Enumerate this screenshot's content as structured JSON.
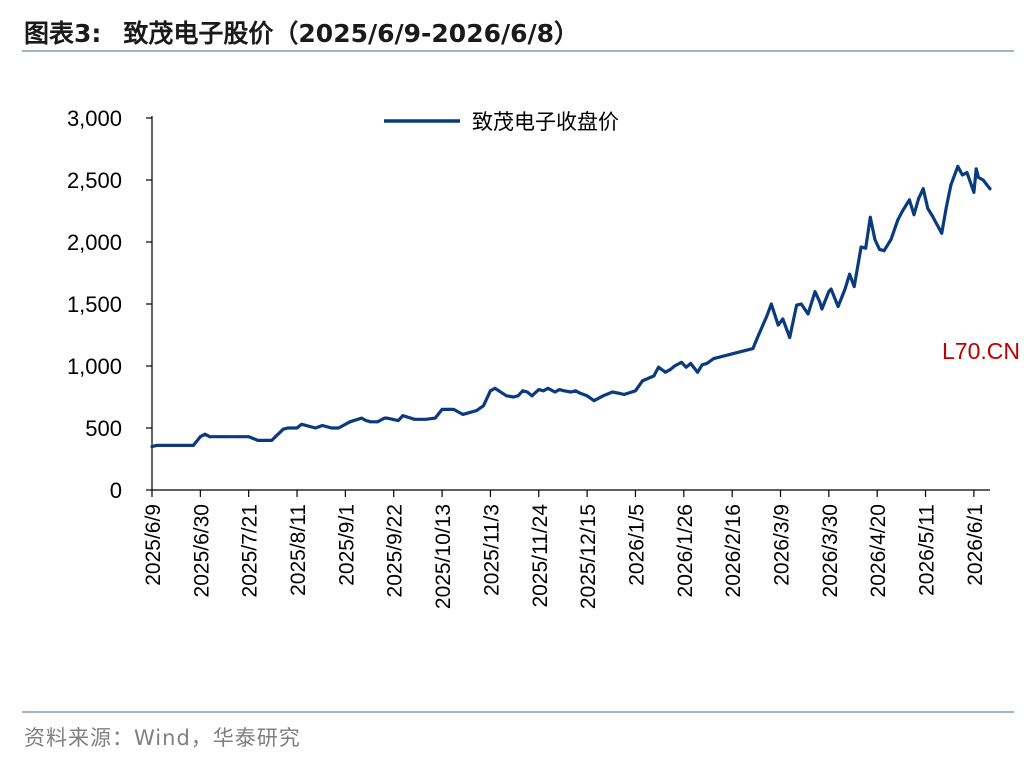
{
  "header": {
    "figure_number": "图表3:",
    "title": "致茂电子股价（2025/6/9-2026/6/8）"
  },
  "footer": {
    "source": "资料来源：Wind，华泰研究"
  },
  "watermark": "L70.CN",
  "colors": {
    "line": "#0b3a7e",
    "rule": "#9fb4c9",
    "watermark": "#c00000"
  },
  "chart_data": {
    "type": "line",
    "title": "致茂电子股价（2025/6/9-2026/6/8）",
    "xlabel": "",
    "ylabel": "",
    "ylim": [
      0,
      3000
    ],
    "yticks": [
      0,
      500,
      1000,
      1500,
      2000,
      2500,
      3000
    ],
    "ytick_labels": [
      "0",
      "500",
      "1,000",
      "1,500",
      "2,000",
      "2,500",
      "3,000"
    ],
    "x_range": [
      "2025-06-09",
      "2026-06-08"
    ],
    "xtick_labels": [
      "2025/6/9",
      "2025/6/30",
      "2025/7/21",
      "2025/8/11",
      "2025/9/1",
      "2025/9/22",
      "2025/10/13",
      "2025/11/3",
      "2025/11/24",
      "2025/12/15",
      "2026/1/5",
      "2026/1/26",
      "2026/2/16",
      "2026/3/9",
      "2026/3/30",
      "2026/4/20",
      "2026/5/11",
      "2026/6/1"
    ],
    "grid": false,
    "legend_position": "top-center",
    "series": [
      {
        "name": "致茂电子收盘价",
        "x": [
          "2025-06-09",
          "2025-06-11",
          "2025-06-20",
          "2025-06-27",
          "2025-06-30",
          "2025-07-02",
          "2025-07-04",
          "2025-07-11",
          "2025-07-17",
          "2025-07-21",
          "2025-07-25",
          "2025-07-29",
          "2025-07-31",
          "2025-08-05",
          "2025-08-07",
          "2025-08-11",
          "2025-08-13",
          "2025-08-19",
          "2025-08-22",
          "2025-08-26",
          "2025-08-29",
          "2025-09-03",
          "2025-09-08",
          "2025-09-10",
          "2025-09-12",
          "2025-09-15",
          "2025-09-18",
          "2025-09-19",
          "2025-09-24",
          "2025-09-26",
          "2025-10-01",
          "2025-10-06",
          "2025-10-10",
          "2025-10-13",
          "2025-10-16",
          "2025-10-18",
          "2025-10-22",
          "2025-10-28",
          "2025-10-31",
          "2025-11-03",
          "2025-11-05",
          "2025-11-10",
          "2025-11-13",
          "2025-11-15",
          "2025-11-17",
          "2025-11-19",
          "2025-11-21",
          "2025-11-24",
          "2025-11-26",
          "2025-11-28",
          "2025-12-01",
          "2025-12-03",
          "2025-12-05",
          "2025-12-08",
          "2025-12-10",
          "2025-12-12",
          "2025-12-15",
          "2025-12-18",
          "2025-12-22",
          "2025-12-26",
          "2025-12-29",
          "2025-12-31",
          "2026-01-05",
          "2026-01-08",
          "2026-01-13",
          "2026-01-15",
          "2026-01-18",
          "2026-01-20",
          "2026-01-22",
          "2026-01-25",
          "2026-01-27",
          "2026-01-29",
          "2026-02-01",
          "2026-02-03",
          "2026-02-05",
          "2026-02-08",
          "2026-02-25",
          "2026-02-27",
          "2026-03-03",
          "2026-03-05",
          "2026-03-08",
          "2026-03-10",
          "2026-03-13",
          "2026-03-16",
          "2026-03-18",
          "2026-03-21",
          "2026-03-24",
          "2026-03-26",
          "2026-03-27",
          "2026-03-30",
          "2026-03-31",
          "2026-04-03",
          "2026-04-06",
          "2026-04-08",
          "2026-04-10",
          "2026-04-13",
          "2026-04-15",
          "2026-04-17",
          "2026-04-19",
          "2026-04-21",
          "2026-04-23",
          "2026-04-26",
          "2026-04-29",
          "2026-05-01",
          "2026-05-04",
          "2026-05-06",
          "2026-05-08",
          "2026-05-10",
          "2026-05-12",
          "2026-05-14",
          "2026-05-18",
          "2026-05-20",
          "2026-05-22",
          "2026-05-25",
          "2026-05-27",
          "2026-05-29",
          "2026-06-01",
          "2026-06-02",
          "2026-06-03",
          "2026-06-05",
          "2026-06-08"
        ],
        "values": [
          350,
          360,
          360,
          360,
          430,
          450,
          430,
          430,
          430,
          430,
          400,
          400,
          400,
          490,
          500,
          500,
          530,
          500,
          520,
          500,
          500,
          550,
          580,
          560,
          550,
          550,
          580,
          580,
          560,
          600,
          570,
          570,
          580,
          650,
          650,
          650,
          610,
          640,
          680,
          800,
          820,
          760,
          750,
          760,
          800,
          790,
          760,
          810,
          800,
          820,
          790,
          810,
          800,
          790,
          800,
          780,
          760,
          720,
          760,
          790,
          780,
          770,
          800,
          880,
          920,
          990,
          950,
          970,
          1000,
          1030,
          990,
          1020,
          950,
          1010,
          1020,
          1060,
          1140,
          1230,
          1400,
          1500,
          1330,
          1380,
          1230,
          1490,
          1500,
          1420,
          1600,
          1520,
          1460,
          1600,
          1620,
          1480,
          1620,
          1740,
          1640,
          1960,
          1950,
          2200,
          2020,
          1940,
          1930,
          2020,
          2180,
          2250,
          2340,
          2220,
          2350,
          2430,
          2270,
          2210,
          2070,
          2280,
          2460,
          2610,
          2540,
          2560,
          2400,
          2590,
          2520,
          2500,
          2430
        ]
      }
    ]
  }
}
